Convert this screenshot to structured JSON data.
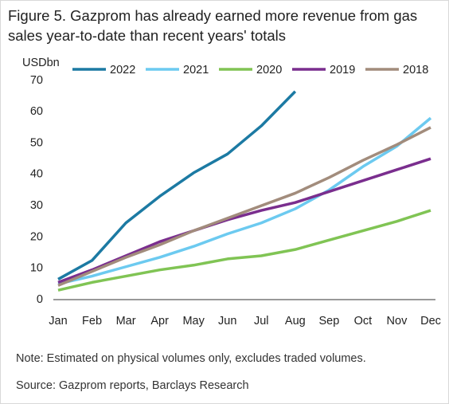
{
  "chart_data": {
    "type": "line",
    "title": "Figure 5. Gazprom has already earned more revenue from gas sales year-to-date than recent years' totals",
    "y_label": "USDbn",
    "categories": [
      "Jan",
      "Feb",
      "Mar",
      "Apr",
      "May",
      "Jun",
      "Jul",
      "Aug",
      "Sep",
      "Oct",
      "Nov",
      "Dec"
    ],
    "series": [
      {
        "name": "2022",
        "color": "#1c7aa3",
        "values": [
          6.5,
          12.5,
          24.5,
          33,
          40.5,
          46.5,
          55.5,
          66.5,
          null,
          null,
          null,
          null
        ]
      },
      {
        "name": "2021",
        "color": "#6ccaf0",
        "values": [
          5,
          7.5,
          10.5,
          13.5,
          17,
          21,
          24.5,
          29,
          35,
          42.5,
          49,
          58
        ]
      },
      {
        "name": "2020",
        "color": "#80c454",
        "values": [
          3,
          5.5,
          7.5,
          9.5,
          11,
          13,
          14,
          16,
          19,
          22,
          25,
          28.5
        ]
      },
      {
        "name": "2019",
        "color": "#7a2e8e",
        "values": [
          5.5,
          9.5,
          14,
          18.5,
          22,
          25.5,
          28.5,
          31,
          34.5,
          38,
          41.5,
          45
        ]
      },
      {
        "name": "2018",
        "color": "#a28c7c",
        "values": [
          4.5,
          9,
          13.5,
          17.5,
          22,
          26,
          30,
          34,
          39,
          44.5,
          49.5,
          55
        ]
      }
    ],
    "ylim": [
      0,
      70
    ],
    "yticks": [
      0,
      10,
      20,
      30,
      40,
      50,
      60,
      70
    ],
    "grid": false,
    "notes": [
      "Note: Estimated on physical volumes only, excludes traded volumes.",
      "Source: Gazprom reports, Barclays Research"
    ]
  }
}
